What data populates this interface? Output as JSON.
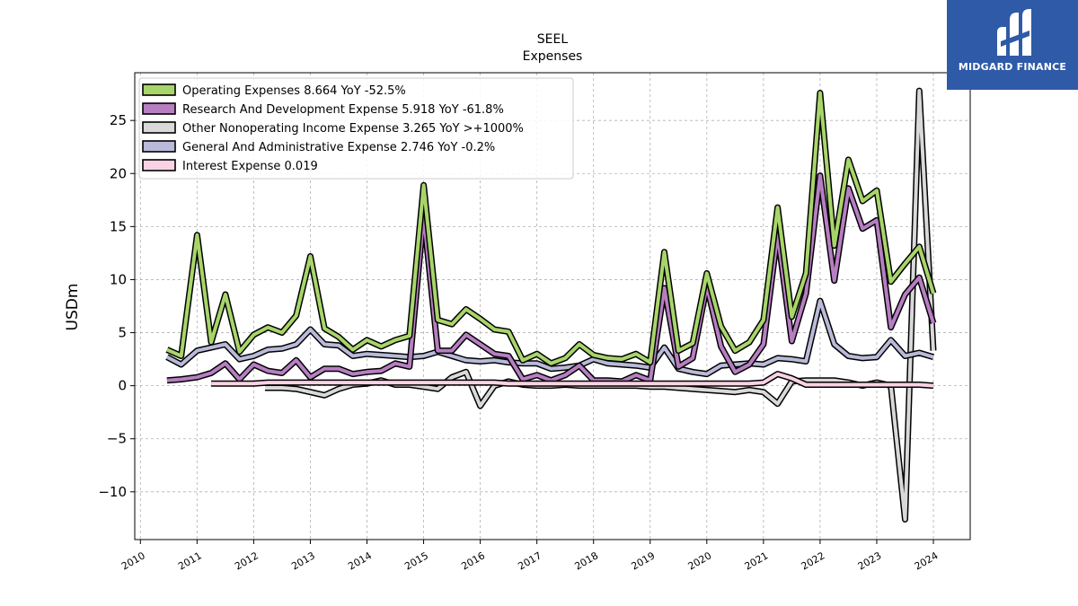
{
  "brand": {
    "name": "MIDGARD FINANCE",
    "bg_color": "#2f5aa8"
  },
  "chart_data": {
    "type": "line",
    "title": "SEEL",
    "subtitle": "Expenses",
    "xlabel": "",
    "ylabel": "USDm",
    "xlim": [
      2009.9,
      2024.65
    ],
    "ylim": [
      -14.5,
      29.5
    ],
    "x_ticks": [
      2010,
      2011,
      2012,
      2013,
      2014,
      2015,
      2016,
      2017,
      2018,
      2019,
      2020,
      2021,
      2022,
      2023,
      2024
    ],
    "y_ticks": [
      -10,
      -5,
      0,
      5,
      10,
      15,
      20,
      25
    ],
    "grid": true,
    "legend_position": "top-left",
    "series": [
      {
        "name": "Operating Expenses",
        "legend": "Operating Expenses  8.664 YoY -52.5%",
        "color": "#a8d56a",
        "points": [
          [
            2010.47,
            3.4
          ],
          [
            2010.72,
            2.8
          ],
          [
            2011.0,
            14.2
          ],
          [
            2011.25,
            4.1
          ],
          [
            2011.5,
            8.6
          ],
          [
            2011.75,
            3.2
          ],
          [
            2012.0,
            4.8
          ],
          [
            2012.25,
            5.5
          ],
          [
            2012.5,
            5.0
          ],
          [
            2012.75,
            6.6
          ],
          [
            2013.0,
            12.2
          ],
          [
            2013.25,
            5.4
          ],
          [
            2013.5,
            4.6
          ],
          [
            2013.75,
            3.4
          ],
          [
            2014.0,
            4.3
          ],
          [
            2014.25,
            3.7
          ],
          [
            2014.5,
            4.3
          ],
          [
            2014.75,
            4.7
          ],
          [
            2015.0,
            18.9
          ],
          [
            2015.25,
            6.2
          ],
          [
            2015.5,
            5.8
          ],
          [
            2015.75,
            7.2
          ],
          [
            2016.0,
            6.3
          ],
          [
            2016.25,
            5.3
          ],
          [
            2016.5,
            5.1
          ],
          [
            2016.75,
            2.4
          ],
          [
            2017.0,
            3.0
          ],
          [
            2017.25,
            2.1
          ],
          [
            2017.5,
            2.6
          ],
          [
            2017.75,
            3.9
          ],
          [
            2018.0,
            2.9
          ],
          [
            2018.25,
            2.6
          ],
          [
            2018.5,
            2.5
          ],
          [
            2018.75,
            3.0
          ],
          [
            2019.0,
            2.2
          ],
          [
            2019.25,
            12.6
          ],
          [
            2019.5,
            3.3
          ],
          [
            2019.75,
            4.0
          ],
          [
            2020.0,
            10.6
          ],
          [
            2020.25,
            5.6
          ],
          [
            2020.5,
            3.3
          ],
          [
            2020.75,
            4.1
          ],
          [
            2021.0,
            6.2
          ],
          [
            2021.25,
            16.8
          ],
          [
            2021.5,
            6.5
          ],
          [
            2021.75,
            10.6
          ],
          [
            2022.0,
            27.6
          ],
          [
            2022.25,
            13.2
          ],
          [
            2022.5,
            21.3
          ],
          [
            2022.75,
            17.4
          ],
          [
            2023.0,
            18.4
          ],
          [
            2023.25,
            9.8
          ],
          [
            2023.5,
            11.5
          ],
          [
            2023.75,
            13.1
          ],
          [
            2024.0,
            8.7
          ]
        ]
      },
      {
        "name": "Research And Development Expense",
        "legend": "Research And Development Expense  5.918 YoY -61.8%",
        "color": "#b77ec2",
        "points": [
          [
            2010.47,
            0.5
          ],
          [
            2010.72,
            0.6
          ],
          [
            2011.0,
            0.8
          ],
          [
            2011.25,
            1.2
          ],
          [
            2011.5,
            2.1
          ],
          [
            2011.75,
            0.6
          ],
          [
            2012.0,
            2.0
          ],
          [
            2012.25,
            1.4
          ],
          [
            2012.5,
            1.2
          ],
          [
            2012.75,
            2.4
          ],
          [
            2013.0,
            0.8
          ],
          [
            2013.25,
            1.6
          ],
          [
            2013.5,
            1.6
          ],
          [
            2013.75,
            1.1
          ],
          [
            2014.0,
            1.3
          ],
          [
            2014.25,
            1.4
          ],
          [
            2014.5,
            2.1
          ],
          [
            2014.75,
            1.8
          ],
          [
            2015.0,
            16.1
          ],
          [
            2015.25,
            3.3
          ],
          [
            2015.5,
            3.3
          ],
          [
            2015.75,
            4.8
          ],
          [
            2016.0,
            3.9
          ],
          [
            2016.25,
            3.0
          ],
          [
            2016.5,
            2.8
          ],
          [
            2016.75,
            0.6
          ],
          [
            2017.0,
            1.0
          ],
          [
            2017.25,
            0.5
          ],
          [
            2017.5,
            1.0
          ],
          [
            2017.75,
            1.9
          ],
          [
            2018.0,
            0.5
          ],
          [
            2018.25,
            0.5
          ],
          [
            2018.5,
            0.4
          ],
          [
            2018.75,
            1.0
          ],
          [
            2019.0,
            0.5
          ],
          [
            2019.25,
            9.2
          ],
          [
            2019.5,
            1.8
          ],
          [
            2019.75,
            2.6
          ],
          [
            2020.0,
            9.4
          ],
          [
            2020.25,
            3.7
          ],
          [
            2020.5,
            1.3
          ],
          [
            2020.75,
            2.0
          ],
          [
            2021.0,
            3.9
          ],
          [
            2021.25,
            14.3
          ],
          [
            2021.5,
            4.2
          ],
          [
            2021.75,
            8.7
          ],
          [
            2022.0,
            19.8
          ],
          [
            2022.25,
            9.9
          ],
          [
            2022.5,
            18.6
          ],
          [
            2022.75,
            14.8
          ],
          [
            2023.0,
            15.6
          ],
          [
            2023.25,
            5.5
          ],
          [
            2023.5,
            8.6
          ],
          [
            2023.75,
            10.2
          ],
          [
            2024.0,
            5.9
          ]
        ]
      },
      {
        "name": "Other Nonoperating Income Expense",
        "legend": "Other Nonoperating Income Expense  3.265 YoY >+1000%",
        "color": "#d9d9d9",
        "points": [
          [
            2012.2,
            -0.2
          ],
          [
            2012.5,
            -0.2
          ],
          [
            2012.75,
            -0.3
          ],
          [
            2013.0,
            -0.6
          ],
          [
            2013.25,
            -0.9
          ],
          [
            2013.5,
            -0.3
          ],
          [
            2013.75,
            0.1
          ],
          [
            2014.0,
            0.2
          ],
          [
            2014.25,
            0.5
          ],
          [
            2014.5,
            0.1
          ],
          [
            2014.75,
            0.1
          ],
          [
            2015.0,
            -0.1
          ],
          [
            2015.25,
            -0.3
          ],
          [
            2015.5,
            0.8
          ],
          [
            2015.75,
            1.3
          ],
          [
            2016.0,
            -1.9
          ],
          [
            2016.25,
            0.0
          ],
          [
            2016.5,
            0.4
          ],
          [
            2016.75,
            0.1
          ],
          [
            2017.0,
            0.0
          ],
          [
            2017.25,
            0.0
          ],
          [
            2017.5,
            0.1
          ],
          [
            2017.75,
            0.0
          ],
          [
            2018.0,
            0.0
          ],
          [
            2018.25,
            0.0
          ],
          [
            2018.5,
            0.0
          ],
          [
            2018.75,
            0.0
          ],
          [
            2019.0,
            -0.1
          ],
          [
            2019.25,
            -0.1
          ],
          [
            2019.5,
            -0.2
          ],
          [
            2019.75,
            -0.3
          ],
          [
            2020.0,
            -0.4
          ],
          [
            2020.25,
            -0.5
          ],
          [
            2020.5,
            -0.6
          ],
          [
            2020.75,
            -0.4
          ],
          [
            2021.0,
            -0.6
          ],
          [
            2021.25,
            -1.7
          ],
          [
            2021.5,
            0.4
          ],
          [
            2021.75,
            0.5
          ],
          [
            2022.0,
            0.5
          ],
          [
            2022.25,
            0.5
          ],
          [
            2022.5,
            0.3
          ],
          [
            2022.75,
            0.0
          ],
          [
            2023.0,
            0.3
          ],
          [
            2023.25,
            0.0
          ],
          [
            2023.5,
            -12.6
          ],
          [
            2023.75,
            27.8
          ],
          [
            2024.0,
            3.3
          ]
        ]
      },
      {
        "name": "General And Administrative Expense",
        "legend": "General And Administrative Expense  2.746 YoY -0.2%",
        "color": "#b9bad9",
        "points": [
          [
            2010.47,
            2.7
          ],
          [
            2010.72,
            2.0
          ],
          [
            2011.0,
            3.3
          ],
          [
            2011.25,
            3.6
          ],
          [
            2011.5,
            3.9
          ],
          [
            2011.75,
            2.5
          ],
          [
            2012.0,
            2.8
          ],
          [
            2012.25,
            3.4
          ],
          [
            2012.5,
            3.5
          ],
          [
            2012.75,
            3.9
          ],
          [
            2013.0,
            5.3
          ],
          [
            2013.25,
            3.9
          ],
          [
            2013.5,
            3.8
          ],
          [
            2013.75,
            2.8
          ],
          [
            2014.0,
            3.0
          ],
          [
            2014.25,
            2.9
          ],
          [
            2014.5,
            2.8
          ],
          [
            2014.75,
            2.7
          ],
          [
            2015.0,
            2.8
          ],
          [
            2015.25,
            3.2
          ],
          [
            2015.5,
            2.8
          ],
          [
            2015.75,
            2.4
          ],
          [
            2016.0,
            2.3
          ],
          [
            2016.25,
            2.4
          ],
          [
            2016.5,
            2.2
          ],
          [
            2016.75,
            2.1
          ],
          [
            2017.0,
            2.1
          ],
          [
            2017.25,
            1.6
          ],
          [
            2017.5,
            1.7
          ],
          [
            2017.75,
            1.9
          ],
          [
            2018.0,
            2.5
          ],
          [
            2018.25,
            2.1
          ],
          [
            2018.5,
            2.0
          ],
          [
            2018.75,
            1.9
          ],
          [
            2019.0,
            1.7
          ],
          [
            2019.25,
            3.6
          ],
          [
            2019.5,
            1.6
          ],
          [
            2019.75,
            1.3
          ],
          [
            2020.0,
            1.1
          ],
          [
            2020.25,
            1.9
          ],
          [
            2020.5,
            2.0
          ],
          [
            2020.75,
            2.1
          ],
          [
            2021.0,
            2.0
          ],
          [
            2021.25,
            2.6
          ],
          [
            2021.5,
            2.5
          ],
          [
            2021.75,
            2.3
          ],
          [
            2022.0,
            8.0
          ],
          [
            2022.25,
            3.9
          ],
          [
            2022.5,
            2.8
          ],
          [
            2022.75,
            2.6
          ],
          [
            2023.0,
            2.7
          ],
          [
            2023.25,
            4.3
          ],
          [
            2023.5,
            2.8
          ],
          [
            2023.75,
            3.1
          ],
          [
            2024.0,
            2.7
          ]
        ]
      },
      {
        "name": "Interest Expense",
        "legend": "Interest Expense  0.019",
        "color": "#f9d2e4",
        "points": [
          [
            2011.25,
            0.2
          ],
          [
            2011.5,
            0.2
          ],
          [
            2011.75,
            0.2
          ],
          [
            2012.0,
            0.2
          ],
          [
            2012.25,
            0.3
          ],
          [
            2012.5,
            0.3
          ],
          [
            2012.75,
            0.3
          ],
          [
            2013.0,
            0.3
          ],
          [
            2013.25,
            0.3
          ],
          [
            2013.5,
            0.3
          ],
          [
            2013.75,
            0.3
          ],
          [
            2014.0,
            0.3
          ],
          [
            2014.25,
            0.3
          ],
          [
            2014.5,
            0.3
          ],
          [
            2014.75,
            0.3
          ],
          [
            2015.0,
            0.3
          ],
          [
            2015.25,
            0.3
          ],
          [
            2015.5,
            0.3
          ],
          [
            2015.75,
            0.3
          ],
          [
            2016.0,
            0.3
          ],
          [
            2016.25,
            0.3
          ],
          [
            2016.5,
            0.2
          ],
          [
            2016.75,
            0.2
          ],
          [
            2017.0,
            0.2
          ],
          [
            2017.25,
            0.2
          ],
          [
            2017.5,
            0.2
          ],
          [
            2017.75,
            0.2
          ],
          [
            2018.0,
            0.2
          ],
          [
            2018.25,
            0.2
          ],
          [
            2018.5,
            0.2
          ],
          [
            2018.75,
            0.2
          ],
          [
            2019.0,
            0.2
          ],
          [
            2019.25,
            0.2
          ],
          [
            2019.5,
            0.2
          ],
          [
            2019.75,
            0.2
          ],
          [
            2020.0,
            0.2
          ],
          [
            2020.25,
            0.2
          ],
          [
            2020.5,
            0.2
          ],
          [
            2020.75,
            0.2
          ],
          [
            2021.0,
            0.3
          ],
          [
            2021.25,
            1.1
          ],
          [
            2021.5,
            0.7
          ],
          [
            2021.75,
            0.1
          ],
          [
            2022.0,
            0.1
          ],
          [
            2022.25,
            0.1
          ],
          [
            2022.5,
            0.1
          ],
          [
            2022.75,
            0.1
          ],
          [
            2023.0,
            0.1
          ],
          [
            2023.25,
            0.1
          ],
          [
            2023.5,
            0.1
          ],
          [
            2023.75,
            0.1
          ],
          [
            2024.0,
            0.0
          ]
        ]
      }
    ]
  }
}
